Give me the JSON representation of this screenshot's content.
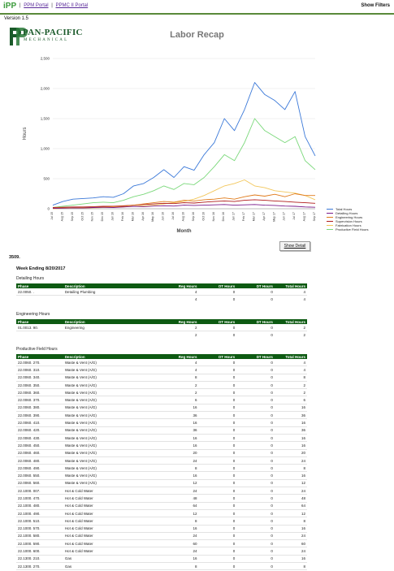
{
  "header": {
    "brand": "iPP",
    "links": [
      "PPM Portal",
      "PPMC II Portal"
    ],
    "show_filters": "Show Filters",
    "version": "Version 1.5"
  },
  "logo": {
    "line1": "PAN-PACIFIC",
    "line2": "MECHANICAL"
  },
  "page_title": "Labor Recap",
  "chart_data": {
    "type": "line",
    "xlabel": "Month",
    "ylabel": "Hours",
    "ylim": [
      0,
      2500
    ],
    "yticks": [
      "0",
      "500",
      "1,000",
      "1,500",
      "2,000",
      "2,500"
    ],
    "x": [
      "Jul 15",
      "Aug 15",
      "Sep 15",
      "Oct 15",
      "Nov 15",
      "Dec 15",
      "Jan 16",
      "Feb 16",
      "Mar 16",
      "Apr 16",
      "May 16",
      "Jun 16",
      "Jul 16",
      "Aug 16",
      "Sep 16",
      "Oct 16",
      "Nov 16",
      "Dec 16",
      "Jan 17",
      "Feb 17",
      "Mar 17",
      "Apr 17",
      "May 17",
      "Jun 17",
      "Jul 17",
      "Aug 17",
      "Sep 17"
    ],
    "series": [
      {
        "name": "Total Hours",
        "color": "#3a78d8",
        "values": [
          60,
          120,
          160,
          170,
          180,
          200,
          190,
          250,
          380,
          420,
          520,
          650,
          520,
          700,
          640,
          900,
          1100,
          1500,
          1300,
          1650,
          2100,
          1900,
          1800,
          1650,
          1950,
          1200,
          880
        ]
      },
      {
        "name": "Detailing Hours",
        "color": "#7a1a8a",
        "values": [
          5,
          10,
          15,
          12,
          20,
          25,
          20,
          30,
          40,
          35,
          45,
          50,
          45,
          60,
          55,
          60,
          65,
          70,
          60,
          65,
          70,
          60,
          55,
          45,
          40,
          30,
          25
        ]
      },
      {
        "name": "Engineering Hours",
        "color": "#e07a1a",
        "values": [
          10,
          15,
          20,
          20,
          25,
          30,
          35,
          40,
          60,
          80,
          100,
          120,
          110,
          140,
          130,
          150,
          160,
          180,
          160,
          200,
          230,
          210,
          240,
          200,
          250,
          220,
          220
        ]
      },
      {
        "name": "Supervision Hours",
        "color": "#b01a1a",
        "values": [
          20,
          25,
          30,
          30,
          35,
          40,
          40,
          50,
          60,
          70,
          80,
          90,
          85,
          100,
          95,
          110,
          120,
          130,
          120,
          140,
          150,
          140,
          130,
          120,
          110,
          100,
          90
        ]
      },
      {
        "name": "Fabrication Hours",
        "color": "#f2c65a",
        "values": [
          0,
          5,
          10,
          10,
          15,
          20,
          25,
          30,
          40,
          50,
          60,
          80,
          100,
          120,
          160,
          220,
          300,
          380,
          420,
          480,
          380,
          350,
          300,
          280,
          260,
          220,
          150
        ]
      },
      {
        "name": "Productive Field Hours",
        "color": "#7ad87a",
        "values": [
          20,
          40,
          60,
          80,
          100,
          110,
          100,
          140,
          200,
          240,
          300,
          380,
          320,
          420,
          400,
          520,
          700,
          900,
          800,
          1100,
          1500,
          1300,
          1200,
          1100,
          1200,
          800,
          650
        ]
      }
    ]
  },
  "show_detail": "Show Detail",
  "section_id": "3509.",
  "week_ending": "Week Ending 8/20/2017",
  "columns": [
    "Phase",
    "Description",
    "Reg Hours",
    "OT Hours",
    "DT Hours",
    "Total Hours"
  ],
  "groups": [
    {
      "title": "Detailing Hours",
      "rows": [
        [
          "22.0050. .",
          "Detailing Plumbing",
          "4",
          "0",
          "0",
          "4"
        ]
      ],
      "total": [
        "4",
        "0",
        "0",
        "4"
      ]
    },
    {
      "title": "Engineering Hours",
      "rows": [
        [
          "01.0013. 90.",
          "Engineering",
          "2",
          "0",
          "0",
          "2"
        ]
      ],
      "total": [
        "2",
        "0",
        "0",
        "2"
      ]
    },
    {
      "title": "Productive Field Hours",
      "rows": [
        [
          "22.0060. 270.",
          "Waste & Vent (A/G)",
          "4",
          "0",
          "0",
          "4"
        ],
        [
          "22.0060. 310.",
          "Waste & Vent (A/G)",
          "4",
          "0",
          "0",
          "4"
        ],
        [
          "22.0060. 340.",
          "Waste & Vent (A/G)",
          "8",
          "0",
          "0",
          "8"
        ],
        [
          "22.0060. 350.",
          "Waste & Vent (A/G)",
          "2",
          "0",
          "0",
          "2"
        ],
        [
          "22.0060. 360.",
          "Waste & Vent (A/G)",
          "2",
          "0",
          "0",
          "2"
        ],
        [
          "22.0060. 370.",
          "Waste & Vent (A/G)",
          "6",
          "0",
          "0",
          "6"
        ],
        [
          "22.0060. 380.",
          "Waste & Vent (A/G)",
          "16",
          "0",
          "0",
          "16"
        ],
        [
          "22.0060. 390.",
          "Waste & Vent (A/G)",
          "36",
          "0",
          "0",
          "36"
        ],
        [
          "22.0060. 410.",
          "Waste & Vent (A/G)",
          "16",
          "0",
          "0",
          "16"
        ],
        [
          "22.0060. 420.",
          "Waste & Vent (A/G)",
          "36",
          "0",
          "0",
          "36"
        ],
        [
          "22.0060. 430.",
          "Waste & Vent (A/G)",
          "16",
          "0",
          "0",
          "16"
        ],
        [
          "22.0060. 450.",
          "Waste & Vent (A/G)",
          "16",
          "0",
          "0",
          "16"
        ],
        [
          "22.0060. 460.",
          "Waste & Vent (A/G)",
          "20",
          "0",
          "0",
          "20"
        ],
        [
          "22.0060. 480.",
          "Waste & Vent (A/G)",
          "24",
          "0",
          "0",
          "24"
        ],
        [
          "22.0060. 490.",
          "Waste & Vent (A/G)",
          "8",
          "0",
          "0",
          "8"
        ],
        [
          "22.0060. 550.",
          "Waste & Vent (A/G)",
          "16",
          "0",
          "0",
          "16"
        ],
        [
          "22.0060. 560.",
          "Waste & Vent (A/G)",
          "12",
          "0",
          "0",
          "12"
        ],
        [
          "22.1000. 007.",
          "Hot & Cold Water",
          "24",
          "0",
          "0",
          "24"
        ],
        [
          "22.1000. 470.",
          "Hot & Cold Water",
          "48",
          "0",
          "0",
          "48"
        ],
        [
          "22.1000. 480.",
          "Hot & Cold Water",
          "64",
          "0",
          "0",
          "64"
        ],
        [
          "22.1000. 490.",
          "Hot & Cold Water",
          "12",
          "0",
          "0",
          "12"
        ],
        [
          "22.1000. 510.",
          "Hot & Cold Water",
          "8",
          "0",
          "0",
          "8"
        ],
        [
          "22.1000. 570.",
          "Hot & Cold Water",
          "16",
          "0",
          "0",
          "16"
        ],
        [
          "22.1000. 580.",
          "Hot & Cold Water",
          "24",
          "0",
          "0",
          "24"
        ],
        [
          "22.1000. 590.",
          "Hot & Cold Water",
          "60",
          "0",
          "0",
          "60"
        ],
        [
          "22.1000. 600.",
          "Hot & Cold Water",
          "24",
          "0",
          "0",
          "24"
        ],
        [
          "22.1300. 210.",
          "Gas",
          "16",
          "0",
          "0",
          "16"
        ],
        [
          "22.1300. 270.",
          "Gas",
          "8",
          "0",
          "0",
          "8"
        ]
      ]
    }
  ]
}
